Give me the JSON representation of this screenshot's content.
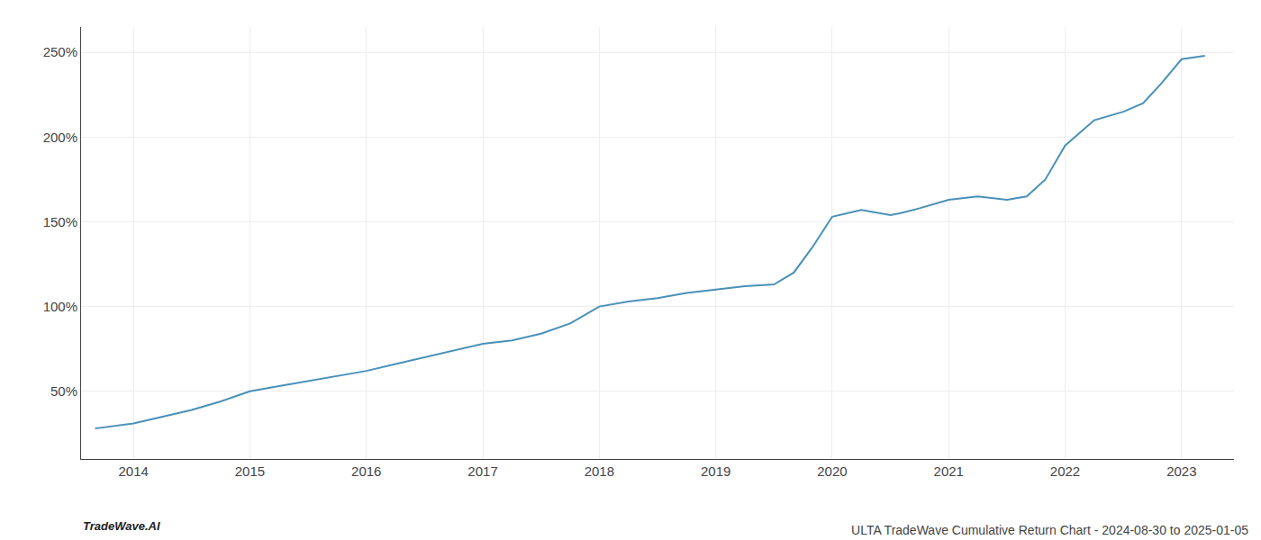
{
  "chart_data": {
    "type": "line",
    "title": "ULTA TradeWave Cumulative Return Chart - 2024-08-30 to 2025-01-05",
    "annotations": [
      "TradeWave.AI"
    ],
    "color": "#4a90b8",
    "x": [
      2013.67,
      2014.0,
      2014.25,
      2014.5,
      2014.75,
      2015.0,
      2015.25,
      2015.5,
      2015.75,
      2016.0,
      2016.25,
      2016.5,
      2016.75,
      2017.0,
      2017.25,
      2017.5,
      2017.75,
      2018.0,
      2018.25,
      2018.5,
      2018.75,
      2019.0,
      2019.25,
      2019.5,
      2019.67,
      2019.83,
      2020.0,
      2020.25,
      2020.5,
      2020.58,
      2020.75,
      2021.0,
      2021.25,
      2021.5,
      2021.67,
      2021.83,
      2022.0,
      2022.25,
      2022.5,
      2022.67,
      2022.83,
      2023.0,
      2023.2
    ],
    "values": [
      28,
      31,
      35,
      39,
      44,
      50,
      53,
      56,
      59,
      62,
      66,
      70,
      74,
      78,
      80,
      84,
      90,
      100,
      103,
      105,
      108,
      110,
      112,
      113,
      120,
      135,
      153,
      157,
      154,
      155,
      158,
      163,
      165,
      163,
      165,
      175,
      195,
      210,
      215,
      220,
      232,
      246,
      248
    ],
    "xlim": [
      2013.55,
      2023.45
    ],
    "xticks": [
      2014,
      2015,
      2016,
      2017,
      2018,
      2019,
      2020,
      2021,
      2022,
      2023
    ],
    "ylim": [
      10,
      265
    ],
    "yticks": [
      {
        "value": 50,
        "label": "50%"
      },
      {
        "value": 100,
        "label": "100%"
      },
      {
        "value": 150,
        "label": "150%"
      },
      {
        "value": 200,
        "label": "200%"
      },
      {
        "value": 250,
        "label": "250%"
      }
    ],
    "grid": true
  }
}
